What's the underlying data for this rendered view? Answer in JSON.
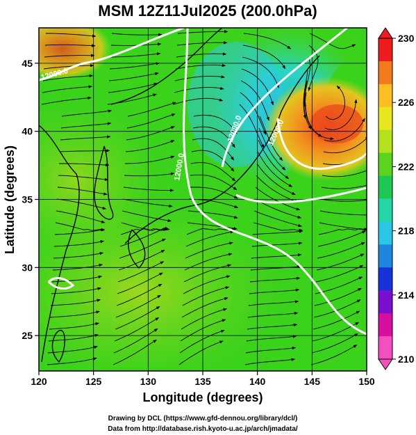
{
  "title": "MSM 12Z11Jul2025 (200.0hPa)",
  "map": {
    "xlabel": "Longitude (degrees)",
    "ylabel": "Latitude  (degrees)",
    "xlim": [
      120,
      150
    ],
    "ylim": [
      22.4,
      47.6
    ],
    "xticks": [
      "120",
      "125",
      "130",
      "135",
      "140",
      "145",
      "150"
    ],
    "yticks": [
      "25",
      "30",
      "35",
      "40",
      "45"
    ],
    "gridlines": true,
    "contour_labels": [
      "12000.0",
      "12000.0",
      "12000.0",
      "12000.0"
    ]
  },
  "colorbar": {
    "min": 210,
    "max": 230,
    "labels": [
      "230",
      "226",
      "222",
      "218",
      "214",
      "210"
    ],
    "colors": [
      "#ee1c1c",
      "#f47a1e",
      "#fbbf22",
      "#e8e61f",
      "#b4e11e",
      "#5ad41e",
      "#1ec853",
      "#24d6a6",
      "#2bc5e6",
      "#1f86e0",
      "#1732d9",
      "#7b0fd0",
      "#d60fa0",
      "#f44fbf"
    ]
  },
  "credits": {
    "line1": "Drawing by DCL (https://www.gfd-dennou.org/library/dcl/)",
    "line2": "Data from http://database.rish.kyoto-u.ac.jp/arch/jmadata/"
  },
  "colors": {
    "background": "#3bd21c",
    "warm": "#f08a1f",
    "cool": "#29c9e6",
    "contour": "#ffffff"
  }
}
